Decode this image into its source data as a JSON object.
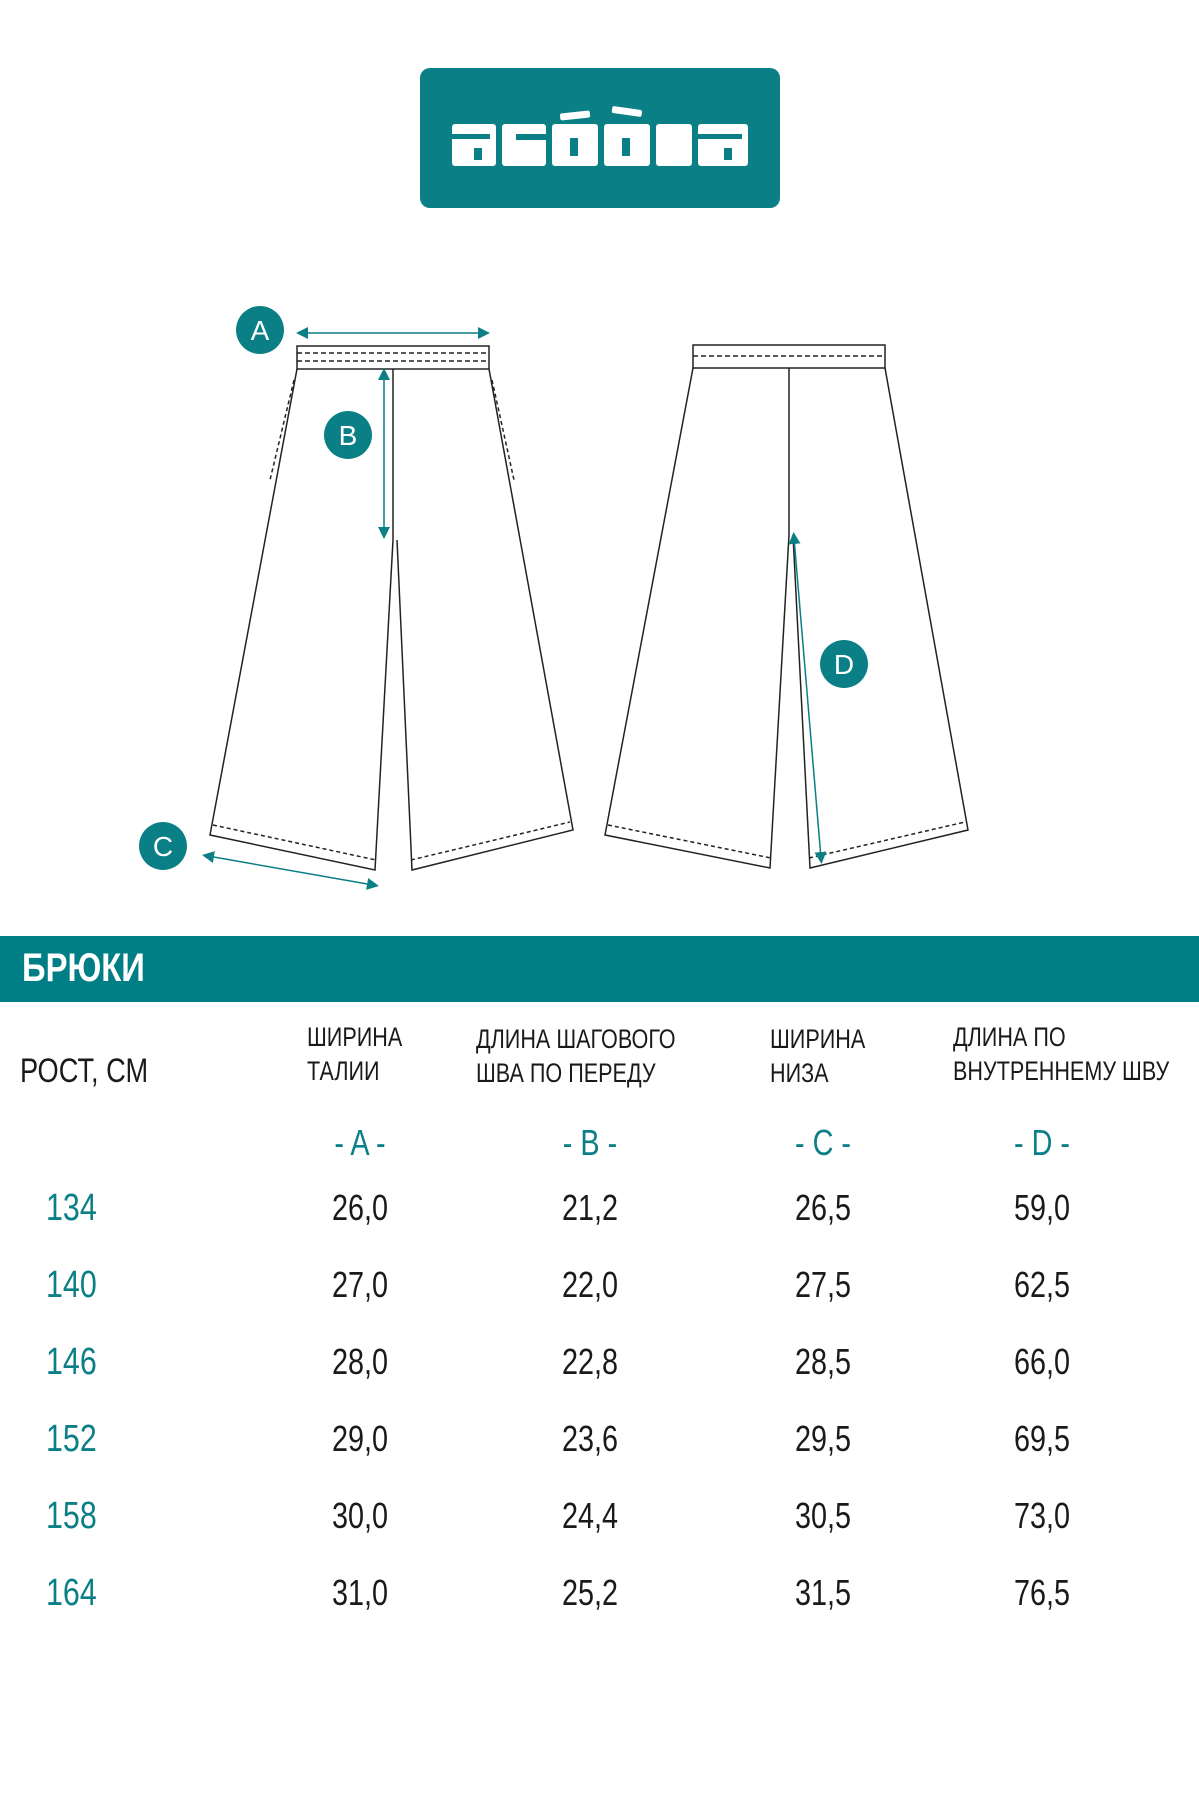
{
  "logo": {
    "text": "acoola",
    "background": "#0b7f86"
  },
  "diagram": {
    "markers": [
      "A",
      "B",
      "C",
      "D"
    ],
    "accent": "#0b7f86"
  },
  "section_title": "БРЮКИ",
  "table": {
    "size_header": "РОСТ, СМ",
    "columns": [
      {
        "line1": "ШИРИНА",
        "line2": "ТАЛИИ",
        "letter": "- A -"
      },
      {
        "line1": "ДЛИНА ШАГОВОГО",
        "line2": "ШВА ПО ПЕРЕДУ",
        "letter": "- B -"
      },
      {
        "line1": "ШИРИНА",
        "line2": "НИЗА",
        "letter": "- C -"
      },
      {
        "line1": "ДЛИНА ПО",
        "line2": "ВНУТРЕННЕМУ ШВУ",
        "letter": "- D -"
      }
    ],
    "rows": [
      {
        "size": "134",
        "values": [
          "26,0",
          "21,2",
          "26,5",
          "59,0"
        ]
      },
      {
        "size": "140",
        "values": [
          "27,0",
          "22,0",
          "27,5",
          "62,5"
        ]
      },
      {
        "size": "146",
        "values": [
          "28,0",
          "22,8",
          "28,5",
          "66,0"
        ]
      },
      {
        "size": "152",
        "values": [
          "29,0",
          "23,6",
          "29,5",
          "69,5"
        ]
      },
      {
        "size": "158",
        "values": [
          "30,0",
          "24,4",
          "30,5",
          "73,0"
        ]
      },
      {
        "size": "164",
        "values": [
          "31,0",
          "25,2",
          "31,5",
          "76,5"
        ]
      }
    ]
  }
}
